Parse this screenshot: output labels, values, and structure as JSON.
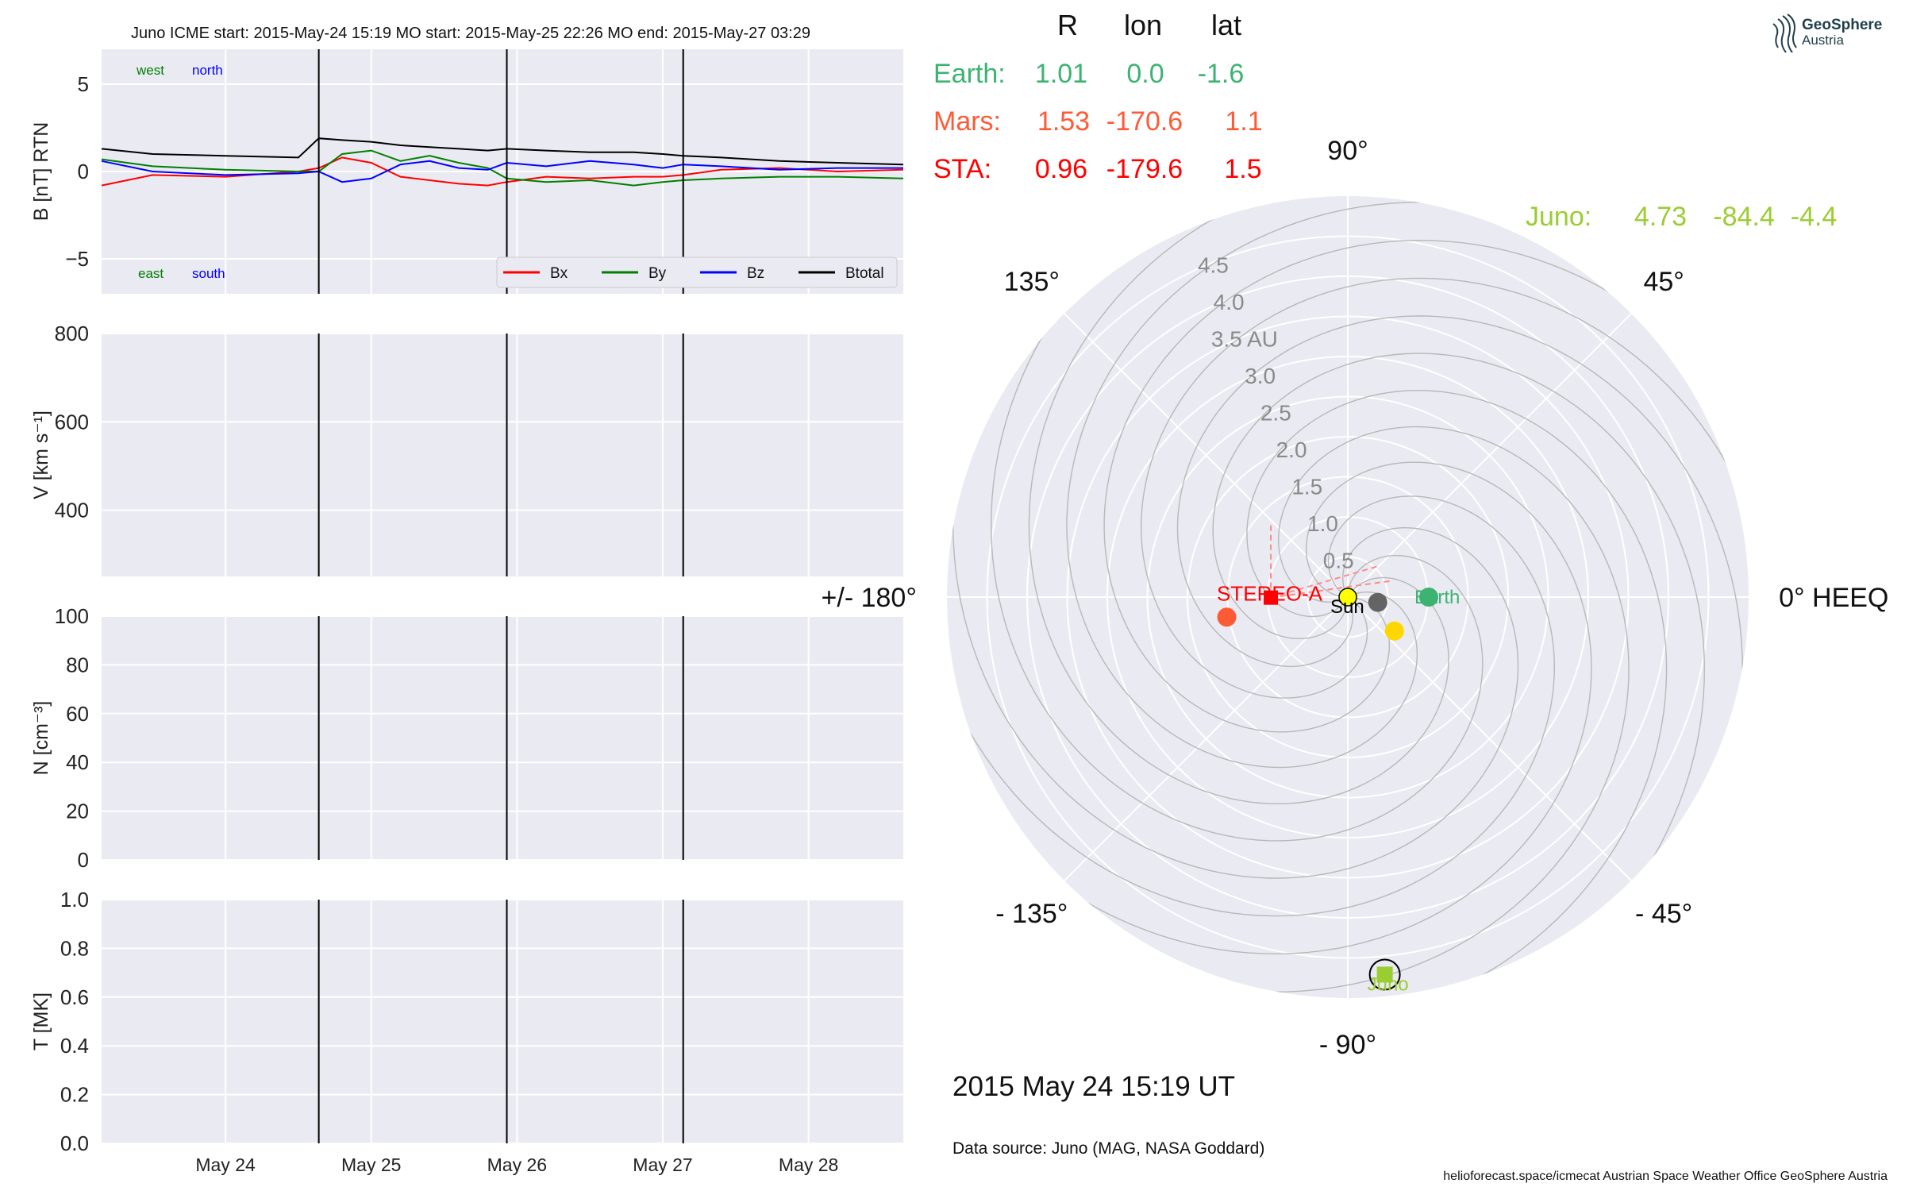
{
  "header": {
    "title": "Juno    ICME start: 2015-May-24 15:19   MO start: 2015-May-25 22:26   MO end: 2015-May-27 03:29",
    "logo": "GeoSphere",
    "logo_sub": "Austria"
  },
  "colors": {
    "bx": "#ff0000",
    "by": "#008000",
    "bz": "#0000ff",
    "btotal": "#000000",
    "earth": "#3cb371",
    "mars": "#ff5a36",
    "sta": "#ff0000",
    "juno": "#9acd32",
    "venus": "#ffd700",
    "mercury": "#646464",
    "sun": "#ffff00",
    "panel_bg": "#eaeaf2"
  },
  "table": {
    "headers": [
      "R",
      "lon",
      "lat"
    ],
    "rows": [
      {
        "label": "Earth:",
        "R": "1.01",
        "lon": "0.0",
        "lat": "-1.6",
        "color": "#3cb371"
      },
      {
        "label": "Mars:",
        "R": "1.53",
        "lon": "-170.6",
        "lat": "1.1",
        "color": "#ff5a36"
      },
      {
        "label": "STA:",
        "R": "0.96",
        "lon": "-179.6",
        "lat": "1.5",
        "color": "#ff0000"
      }
    ],
    "juno_row": {
      "label": "Juno:",
      "R": "4.73",
      "lon": "-84.4",
      "lat": "-4.4",
      "color": "#9acd32"
    }
  },
  "footer": {
    "datetime": "2015 May 24  15:19 UT",
    "source": "Data source: Juno (MAG, NASA Goddard)",
    "credit": "helioforecast.space/icmecat   Austrian Space Weather Office   GeoSphere Austria"
  },
  "chart_data": [
    {
      "type": "line",
      "panel": "B",
      "ylabel": "B [nT] RTN",
      "ylim": [
        -7,
        7
      ],
      "yticks": [
        "5",
        "0",
        "−5"
      ],
      "ytick_values": [
        5,
        0,
        -5
      ],
      "annotations": {
        "west": "west",
        "north": "north",
        "east": "east",
        "south": "south"
      },
      "legend": [
        "Bx",
        "By",
        "Bz",
        "Btotal"
      ],
      "legend_placement": "lower-right",
      "xlim_days": [
        23.15,
        28.65
      ],
      "event_lines": [
        24.64,
        25.93,
        27.14
      ],
      "series": [
        {
          "name": "Bx",
          "x": [
            23.15,
            23.5,
            24.0,
            24.5,
            24.64,
            24.8,
            25.0,
            25.2,
            25.4,
            25.6,
            25.8,
            25.93,
            26.2,
            26.5,
            26.8,
            27.0,
            27.14,
            27.4,
            27.8,
            28.2,
            28.65
          ],
          "y": [
            -0.8,
            -0.2,
            -0.3,
            0.0,
            0.2,
            0.8,
            0.5,
            -0.3,
            -0.5,
            -0.7,
            -0.8,
            -0.6,
            -0.3,
            -0.4,
            -0.3,
            -0.3,
            -0.2,
            0.1,
            0.2,
            0.0,
            0.1
          ]
        },
        {
          "name": "By",
          "x": [
            23.15,
            23.5,
            24.0,
            24.5,
            24.64,
            24.8,
            25.0,
            25.2,
            25.4,
            25.6,
            25.8,
            25.93,
            26.2,
            26.5,
            26.8,
            27.0,
            27.14,
            27.4,
            27.8,
            28.2,
            28.65
          ],
          "y": [
            0.7,
            0.3,
            0.1,
            0.0,
            0.0,
            1.0,
            1.2,
            0.6,
            0.9,
            0.5,
            0.2,
            -0.4,
            -0.6,
            -0.5,
            -0.8,
            -0.6,
            -0.5,
            -0.4,
            -0.3,
            -0.3,
            -0.4
          ]
        },
        {
          "name": "Bz",
          "x": [
            23.15,
            23.5,
            24.0,
            24.5,
            24.64,
            24.8,
            25.0,
            25.2,
            25.4,
            25.6,
            25.8,
            25.93,
            26.2,
            26.5,
            26.8,
            27.0,
            27.14,
            27.4,
            27.8,
            28.2,
            28.65
          ],
          "y": [
            0.6,
            0.0,
            -0.2,
            -0.1,
            0.0,
            -0.6,
            -0.4,
            0.4,
            0.6,
            0.2,
            0.1,
            0.5,
            0.3,
            0.6,
            0.4,
            0.2,
            0.4,
            0.3,
            0.1,
            0.2,
            0.2
          ]
        },
        {
          "name": "Btotal",
          "x": [
            23.15,
            23.5,
            24.0,
            24.5,
            24.64,
            24.8,
            25.0,
            25.2,
            25.4,
            25.6,
            25.8,
            25.93,
            26.2,
            26.5,
            26.8,
            27.0,
            27.14,
            27.4,
            27.8,
            28.2,
            28.65
          ],
          "y": [
            1.3,
            1.0,
            0.9,
            0.8,
            1.9,
            1.8,
            1.7,
            1.5,
            1.4,
            1.3,
            1.2,
            1.3,
            1.2,
            1.1,
            1.1,
            1.0,
            0.9,
            0.8,
            0.6,
            0.5,
            0.4
          ]
        }
      ]
    },
    {
      "type": "line",
      "panel": "V",
      "ylabel": "V [km s⁻¹]",
      "ylim": [
        250,
        800
      ],
      "yticks": [
        "800",
        "600",
        "400"
      ],
      "ytick_values": [
        800,
        600,
        400
      ],
      "series": []
    },
    {
      "type": "line",
      "panel": "N",
      "ylabel": "N [cm⁻³]",
      "ylim": [
        0,
        100
      ],
      "yticks": [
        "100",
        "80",
        "60",
        "40",
        "20",
        "0"
      ],
      "ytick_values": [
        100,
        80,
        60,
        40,
        20,
        0
      ],
      "series": []
    },
    {
      "type": "line",
      "panel": "T",
      "ylabel": "T [MK]",
      "ylim": [
        0,
        1
      ],
      "yticks": [
        "1.0",
        "0.8",
        "0.6",
        "0.4",
        "0.2",
        "0.0"
      ],
      "ytick_values": [
        1.0,
        0.8,
        0.6,
        0.4,
        0.2,
        0.0
      ],
      "xticks": [
        "May 24",
        "May 25",
        "May 26",
        "May 27",
        "May 28"
      ],
      "xtick_values": [
        24,
        25,
        26,
        27,
        28
      ],
      "series": []
    },
    {
      "type": "scatter",
      "panel": "polar",
      "max_au": 5.0,
      "rticks": [
        "0.5",
        "1.0",
        "1.5",
        "2.0",
        "2.5",
        "3.0",
        "3.5 AU",
        "4.0",
        "4.5"
      ],
      "rtick_values": [
        0.5,
        1.0,
        1.5,
        2.0,
        2.5,
        3.0,
        3.5,
        4.0,
        4.5
      ],
      "angle_labels": [
        {
          "deg": 0,
          "text": "0° HEEQ"
        },
        {
          "deg": 45,
          "text": "45°"
        },
        {
          "deg": 90,
          "text": "90°"
        },
        {
          "deg": 135,
          "text": "135°"
        },
        {
          "deg": 180,
          "text": "+/- 180°"
        },
        {
          "deg": -135,
          "text": "- 135°"
        },
        {
          "deg": -90,
          "text": "- 90°"
        },
        {
          "deg": -45,
          "text": "- 45°"
        }
      ],
      "bodies": [
        {
          "name": "Sun",
          "r": 0.0,
          "lon": 0,
          "color": "#ffff00",
          "marker": "circle",
          "label": "Sun"
        },
        {
          "name": "Mercury",
          "r": 0.38,
          "lon": -10,
          "color": "#646464",
          "marker": "circle",
          "label": ""
        },
        {
          "name": "Venus",
          "r": 0.72,
          "lon": -36,
          "color": "#ffd700",
          "marker": "circle",
          "label": ""
        },
        {
          "name": "Earth",
          "r": 1.01,
          "lon": 0.0,
          "color": "#3cb371",
          "marker": "circle",
          "label": "Earth"
        },
        {
          "name": "Mars",
          "r": 1.53,
          "lon": -170.6,
          "color": "#ff5a36",
          "marker": "circle",
          "label": ""
        },
        {
          "name": "STEREO-A",
          "r": 0.96,
          "lon": -179.6,
          "color": "#ff0000",
          "marker": "square",
          "label": "STEREO-A"
        },
        {
          "name": "Juno",
          "r": 4.73,
          "lon": -84.4,
          "color": "#9acd32",
          "marker": "square",
          "label": "Juno"
        }
      ]
    }
  ]
}
